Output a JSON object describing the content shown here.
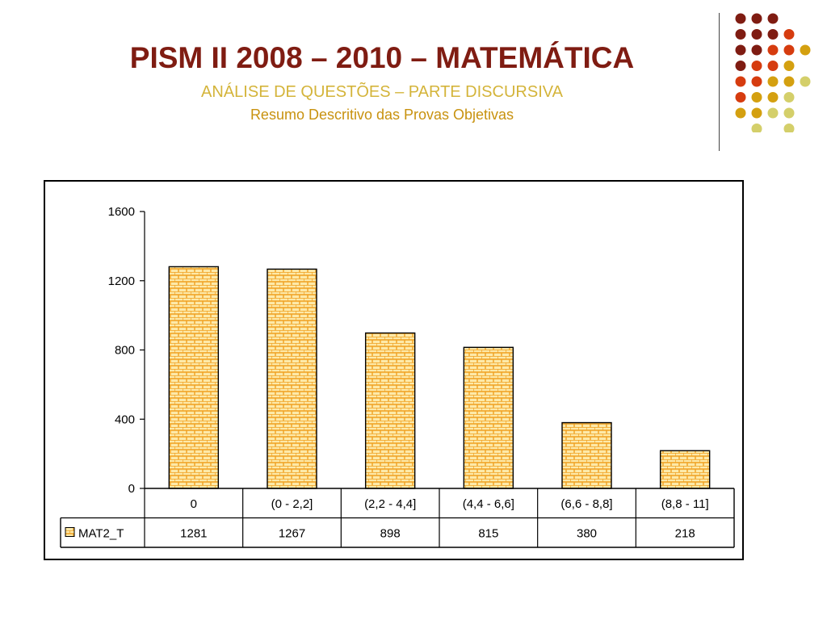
{
  "slide": {
    "title": "PISM II 2008 – 2010 – MATEMÁTICA",
    "subtitle": "ANÁLISE DE QUESTÕES – PARTE DISCURSIVA",
    "subtitle2": "Resumo Descritivo das Provas Objetivas"
  },
  "colors": {
    "title": "#7f1c12",
    "subtitle": "#d4b43a",
    "subtitle2": "#c8920f",
    "bar_fill": "#fde9a8",
    "bar_pattern": "#f0a020",
    "dot_dark_red": "#7f1c12",
    "dot_red": "#d63c0f",
    "dot_gold": "#d4a010",
    "dot_khaki": "#d4cf6a"
  },
  "chart_data": {
    "type": "bar",
    "categories": [
      "0",
      "(0 - 2,2]",
      "(2,2 - 4,4]",
      "(4,4 - 6,6]",
      "(6,6 - 8,8]",
      "(8,8 - 11]"
    ],
    "series": [
      {
        "name": "MAT2_T",
        "values": [
          1281,
          1267,
          898,
          815,
          380,
          218
        ]
      }
    ],
    "table_values": [
      "1281",
      "1267",
      "898",
      "815",
      "380",
      "218"
    ],
    "yticks": [
      "0",
      "400",
      "800",
      "1200",
      "1600"
    ],
    "ylim": [
      0,
      1600
    ],
    "legend": "data-table",
    "grid": false,
    "pattern": "brick"
  }
}
